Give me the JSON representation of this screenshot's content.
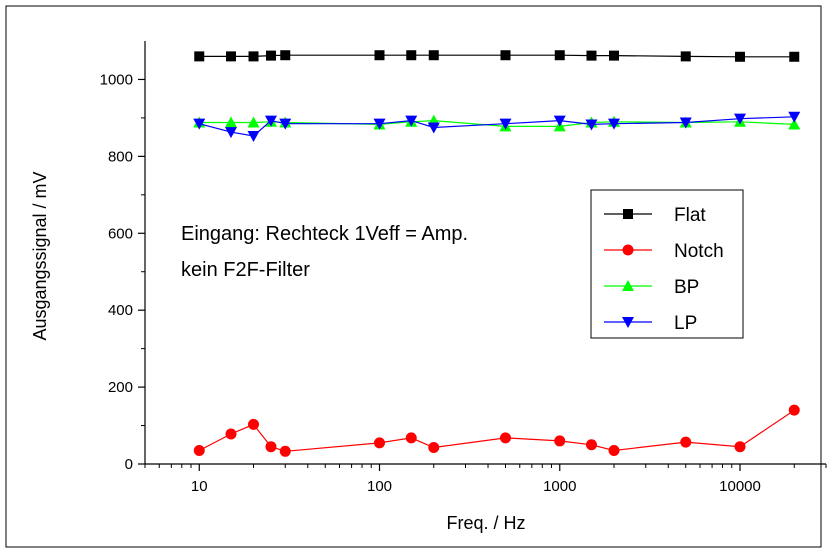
{
  "chart_data": {
    "type": "line",
    "xscale": "log",
    "xlim": [
      5,
      30000
    ],
    "ylim": [
      0,
      1100
    ],
    "xticks": [
      10,
      100,
      1000,
      10000
    ],
    "xtick_labels": [
      "10",
      "100",
      "1000",
      "10000"
    ],
    "yticks": [
      0,
      200,
      400,
      600,
      800,
      1000
    ],
    "ytick_labels": [
      "0",
      "200",
      "400",
      "600",
      "800",
      "1000"
    ],
    "xlabel": "Freq. / Hz",
    "ylabel": "Ausgangssignal / mV",
    "legend_position": "right",
    "annotations": [
      "Eingang: Rechteck 1Veff = Amp.",
      "kein F2F-Filter"
    ],
    "x": [
      10,
      15,
      20,
      25,
      30,
      100,
      150,
      200,
      500,
      1000,
      1500,
      2000,
      5000,
      10000,
      20000
    ],
    "series": [
      {
        "name": "Flat",
        "color": "#000000",
        "marker": "square",
        "values": [
          1060,
          1060,
          1060,
          1062,
          1063,
          1063,
          1063,
          1063,
          1063,
          1063,
          1062,
          1062,
          1060,
          1059,
          1059
        ]
      },
      {
        "name": "Notch",
        "color": "#ff0000",
        "marker": "circle",
        "values": [
          35,
          78,
          103,
          45,
          33,
          55,
          68,
          43,
          68,
          60,
          50,
          35,
          57,
          45,
          140
        ]
      },
      {
        "name": "BP",
        "color": "#00ff00",
        "marker": "triangle-up",
        "values": [
          888,
          888,
          888,
          890,
          888,
          883,
          890,
          893,
          878,
          878,
          888,
          890,
          888,
          890,
          883
        ]
      },
      {
        "name": "LP",
        "color": "#0000ff",
        "marker": "triangle-down",
        "values": [
          885,
          863,
          853,
          893,
          885,
          885,
          893,
          875,
          885,
          893,
          883,
          885,
          888,
          898,
          903
        ]
      }
    ]
  }
}
